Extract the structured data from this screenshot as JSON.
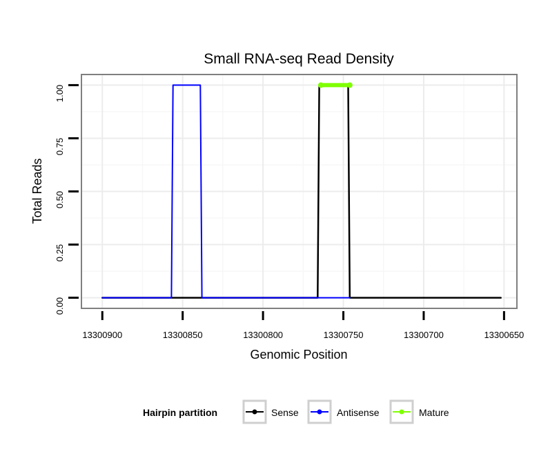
{
  "chart_data": {
    "type": "line",
    "title": "Small RNA-seq Read Density",
    "xlabel": "Genomic Position",
    "ylabel": "Total Reads",
    "x_reversed": true,
    "xlim": [
      13300913,
      13300642
    ],
    "ylim": [
      -0.05,
      1.05
    ],
    "x_ticks": [
      13300900,
      13300850,
      13300800,
      13300750,
      13300700,
      13300650
    ],
    "x_tick_labels": [
      "13300900",
      "13300850",
      "13300800",
      "13300750",
      "13300700",
      "13300650"
    ],
    "y_ticks": [
      0,
      0.25,
      0.5,
      0.75,
      1.0
    ],
    "y_tick_labels": [
      "0.00",
      "0.25",
      "0.50",
      "0.75",
      "1.00"
    ],
    "grid": true,
    "legend_position": "bottom",
    "legend_title": "Hairpin partition",
    "series": [
      {
        "name": "Sense",
        "color": "#000000",
        "x": [
          13300900,
          13300766,
          13300765,
          13300747,
          13300746,
          13300652
        ],
        "y": [
          0,
          0,
          1,
          1,
          0,
          0
        ]
      },
      {
        "name": "Antisense",
        "color": "#0000ff",
        "x": [
          13300900,
          13300857,
          13300856,
          13300839,
          13300838,
          13300766,
          13300746
        ],
        "y": [
          0,
          0,
          1,
          1,
          0,
          0,
          0
        ]
      },
      {
        "name": "Mature",
        "color": "#7fff00",
        "x": [
          13300764,
          13300746
        ],
        "y": [
          1,
          1
        ]
      }
    ]
  }
}
